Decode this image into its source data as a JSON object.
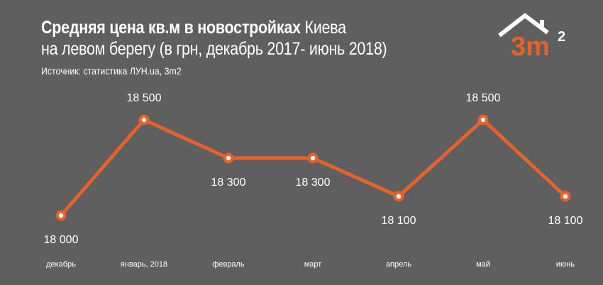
{
  "title": {
    "bold": "Средняя цена кв.м в новостройках",
    "regular_1": " Киева",
    "line2": "на левом берегу (в грн, декабрь 2017- июнь 2018)"
  },
  "source": "Источник: статистика ЛУН.ua, 3m2",
  "logo": {
    "text": "3m",
    "sup": "2"
  },
  "colors": {
    "background": "#5f5f5f",
    "line": "#e5622a",
    "text": "#ffffff"
  },
  "chart_data": {
    "type": "line",
    "categories": [
      "декабрь",
      "январь, 2018",
      "февраль",
      "март",
      "апрель",
      "май",
      "июнь"
    ],
    "series": [
      {
        "values": [
          18000,
          18500,
          18300,
          18300,
          18100,
          18500,
          18100
        ],
        "labels": [
          "18 000",
          "18 500",
          "18 300",
          "18 300",
          "18 100",
          "18 500",
          "18 100"
        ]
      }
    ],
    "label_position": [
      "below",
      "above",
      "below",
      "below",
      "below",
      "above",
      "below"
    ],
    "ylim": [
      18000,
      18500
    ],
    "grid": false,
    "legend": "none"
  }
}
